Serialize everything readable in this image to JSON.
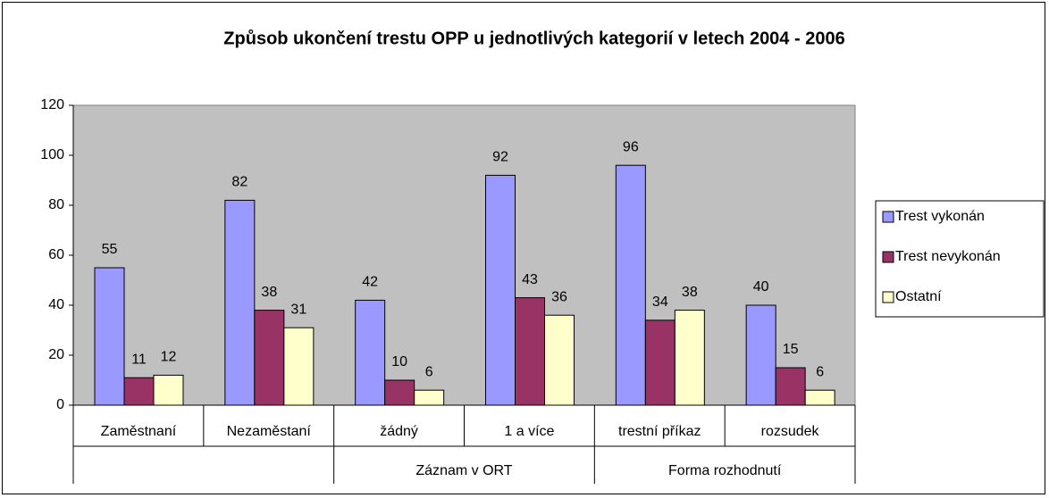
{
  "chart_data": {
    "type": "bar",
    "title": "Způsob ukončení trestu OPP u jednotlivých kategorií v letech 2004 - 2006",
    "categories": [
      "Zaměstnaní",
      "Nezaměstaní",
      "žádný",
      "1 a více",
      "trestní příkaz",
      "rozsudek"
    ],
    "groups": [
      {
        "label": null,
        "size": 2
      },
      {
        "label": "Záznam v ORT",
        "size": 2
      },
      {
        "label": "Forma rozhodnutí",
        "size": 2
      }
    ],
    "series": [
      {
        "name": "Trest vykonán",
        "color": "#9999ff",
        "values": [
          55,
          82,
          42,
          92,
          96,
          40
        ]
      },
      {
        "name": "Trest nevykonán",
        "color": "#993366",
        "values": [
          11,
          38,
          10,
          43,
          34,
          15
        ]
      },
      {
        "name": "Ostatní",
        "color": "#ffffcc",
        "values": [
          12,
          31,
          6,
          36,
          38,
          6
        ]
      }
    ],
    "ylim": [
      0,
      120
    ],
    "yticks": [
      0,
      20,
      40,
      60,
      80,
      100,
      120
    ],
    "plot_background": "#c0c0c0",
    "legend": "right"
  }
}
